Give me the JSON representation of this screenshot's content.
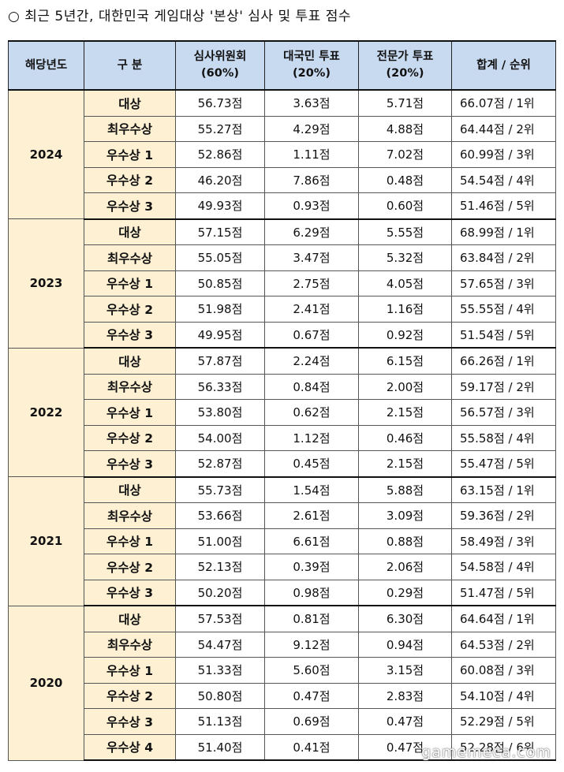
{
  "title": "○ 최근 5년간, 대한민국 게임대상 '본상' 심사 및 투표 점수",
  "header": {
    "year": "해당년도",
    "category": "구 분",
    "judges": [
      "심사위원회",
      "(60%)"
    ],
    "public": [
      "대국민 투표",
      "(20%)"
    ],
    "expert": [
      "전문가 투표",
      "(20%)"
    ],
    "total": "합계 / 순위"
  },
  "groups": [
    {
      "year": "2024",
      "rows": [
        {
          "cat": "대상",
          "judge": "56.73점",
          "public": "3.63점",
          "expert": "5.71점",
          "total": "66.07점 / 1위"
        },
        {
          "cat": "최우수상",
          "judge": "55.27점",
          "public": "4.29점",
          "expert": "4.88점",
          "total": "64.44점 / 2위"
        },
        {
          "cat": "우수상 1",
          "judge": "52.86점",
          "public": "1.11점",
          "expert": "7.02점",
          "total": "60.99점 / 3위"
        },
        {
          "cat": "우수상 2",
          "judge": "46.20점",
          "public": "7.86점",
          "expert": "0.48점",
          "total": "54.54점 / 4위"
        },
        {
          "cat": "우수상 3",
          "judge": "49.93점",
          "public": "0.93점",
          "expert": "0.60점",
          "total": "51.46점 / 5위"
        }
      ]
    },
    {
      "year": "2023",
      "rows": [
        {
          "cat": "대상",
          "judge": "57.15점",
          "public": "6.29점",
          "expert": "5.55점",
          "total": "68.99점 / 1위"
        },
        {
          "cat": "최우수상",
          "judge": "55.05점",
          "public": "3.47점",
          "expert": "5.32점",
          "total": "63.84점 / 2위"
        },
        {
          "cat": "우수상 1",
          "judge": "50.85점",
          "public": "2.75점",
          "expert": "4.05점",
          "total": "57.65점 / 3위"
        },
        {
          "cat": "우수상 2",
          "judge": "51.98점",
          "public": "2.41점",
          "expert": "1.16점",
          "total": "55.55점 / 4위"
        },
        {
          "cat": "우수상 3",
          "judge": "49.95점",
          "public": "0.67점",
          "expert": "0.92점",
          "total": "51.54점 / 5위"
        }
      ]
    },
    {
      "year": "2022",
      "rows": [
        {
          "cat": "대상",
          "judge": "57.87점",
          "public": "2.24점",
          "expert": "6.15점",
          "total": "66.26점 / 1위"
        },
        {
          "cat": "최우수상",
          "judge": "56.33점",
          "public": "0.84점",
          "expert": "2.00점",
          "total": "59.17점 / 2위"
        },
        {
          "cat": "우수상 1",
          "judge": "53.80점",
          "public": "0.62점",
          "expert": "2.15점",
          "total": "56.57점 / 3위"
        },
        {
          "cat": "우수상 2",
          "judge": "54.00점",
          "public": "1.12점",
          "expert": "0.46점",
          "total": "55.58점 / 4위"
        },
        {
          "cat": "우수상 3",
          "judge": "52.87점",
          "public": "0.45점",
          "expert": "2.15점",
          "total": "55.47점 / 5위"
        }
      ]
    },
    {
      "year": "2021",
      "rows": [
        {
          "cat": "대상",
          "judge": "55.73점",
          "public": "1.54점",
          "expert": "5.88점",
          "total": "63.15점 / 1위"
        },
        {
          "cat": "최우수상",
          "judge": "53.66점",
          "public": "2.61점",
          "expert": "3.09점",
          "total": "59.36점 / 2위"
        },
        {
          "cat": "우수상 1",
          "judge": "51.00점",
          "public": "6.61점",
          "expert": "0.88점",
          "total": "58.49점 / 3위"
        },
        {
          "cat": "우수상 2",
          "judge": "52.13점",
          "public": "0.39점",
          "expert": "2.06점",
          "total": "54.58점 / 4위"
        },
        {
          "cat": "우수상 3",
          "judge": "50.20점",
          "public": "0.98점",
          "expert": "0.29점",
          "total": "51.47점 / 5위"
        }
      ]
    },
    {
      "year": "2020",
      "rows": [
        {
          "cat": "대상",
          "judge": "57.53점",
          "public": "0.81점",
          "expert": "6.30점",
          "total": "64.64점 / 1위"
        },
        {
          "cat": "최우수상",
          "judge": "54.47점",
          "public": "9.12점",
          "expert": "0.94점",
          "total": "64.53점 / 2위"
        },
        {
          "cat": "우수상 1",
          "judge": "51.33점",
          "public": "5.60점",
          "expert": "3.15점",
          "total": "60.08점 / 3위"
        },
        {
          "cat": "우수상 2",
          "judge": "50.80점",
          "public": "0.47점",
          "expert": "2.83점",
          "total": "54.10점 / 4위"
        },
        {
          "cat": "우수상 3",
          "judge": "51.13점",
          "public": "0.69점",
          "expert": "0.47점",
          "total": "52.29점 / 5위"
        },
        {
          "cat": "우수상 4",
          "judge": "51.40점",
          "public": "0.41점",
          "expert": "0.47점",
          "total": "52.28점 / 6위"
        }
      ]
    }
  ],
  "watermark": "gamemeca.com"
}
